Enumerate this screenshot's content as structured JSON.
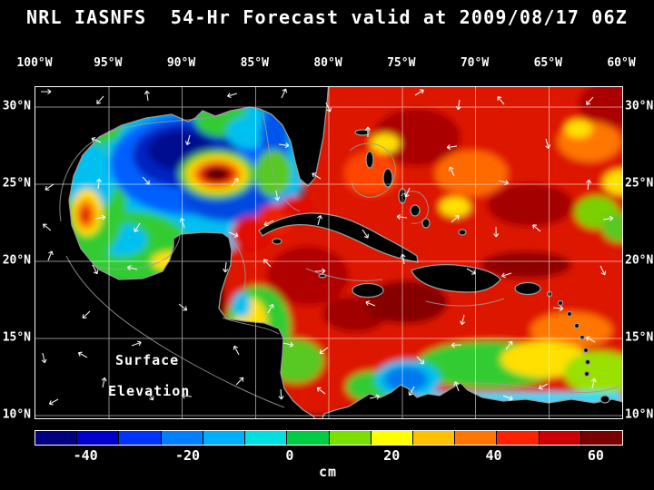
{
  "title": "NRL IASNFS  54-Hr Forecast valid at 2009/08/17 06Z",
  "map": {
    "lon_labels": [
      "100°W",
      "95°W",
      "90°W",
      "85°W",
      "80°W",
      "75°W",
      "70°W",
      "65°W",
      "60°W"
    ],
    "lat_labels": [
      "30°N",
      "25°N",
      "20°N",
      "15°N",
      "10°N"
    ],
    "annotation_line1": "Surface",
    "annotation_line2": "Elevation"
  },
  "colorbar": {
    "unit": "cm",
    "tick_labels": [
      "-40",
      "-20",
      "0",
      "20",
      "40",
      "60"
    ],
    "tick_values": [
      -40,
      -20,
      0,
      20,
      40,
      60
    ],
    "range_min": -50,
    "range_max": 65,
    "colors": [
      "#000080",
      "#0000cc",
      "#0033ff",
      "#0080ff",
      "#00b0ff",
      "#00e0e0",
      "#00cc44",
      "#7ae000",
      "#ffff00",
      "#ffc000",
      "#ff7700",
      "#ff2200",
      "#cc0000",
      "#7a0000"
    ]
  },
  "colors": {
    "background": "#000000",
    "frame": "#ffffff",
    "text": "#ffffff",
    "land": "#000000",
    "coastline": "#9a9a9a",
    "grid_lines": "#ffffff",
    "vector_arrows": "#ffffff"
  },
  "chart_data": {
    "type": "heatmap",
    "title": "NRL IASNFS 54-Hr Forecast valid at 2009/08/17 06Z",
    "variable": "Surface Elevation",
    "units": "cm",
    "region": "Gulf of Mexico, Caribbean Sea and western North Atlantic (Intra-Americas Sea)",
    "x_axis": {
      "label": "Longitude",
      "tick_labels": [
        "100°W",
        "95°W",
        "90°W",
        "85°W",
        "80°W",
        "75°W",
        "70°W",
        "65°W",
        "60°W"
      ]
    },
    "y_axis": {
      "label": "Latitude",
      "tick_labels": [
        "30°N",
        "25°N",
        "20°N",
        "15°N",
        "10°N"
      ]
    },
    "colorbar": {
      "units": "cm",
      "tick_values": [
        -40,
        -20,
        0,
        20,
        40,
        60
      ],
      "estimated_range": [
        -50,
        65
      ]
    },
    "grid": "5-degree latitude/longitude graticule drawn as white lines; land masked black with gray coastlines; white current-vector arrows overlaid",
    "notable_features": [
      "Warm-core eddy with very dark red core (> +60 cm) near 88°W 26°N in the central Gulf of Mexico, ringed by red, orange, yellow and green",
      "Large low-elevation area (deep blue, about -30 to -45 cm) over the north-central Gulf of Mexico surrounding the warm eddy",
      "Small high eddy with red core (about +40 cm) in the far western Gulf near 96.5°W 23°N inside a green/cyan field",
      "Cyan/green (about -10 to +5 cm) over the western Gulf and Bay of Campeche; blue band (about -20 cm) along the West Florida shelf",
      "Red tongue of the Loop Current through the Yucatan Channel and Straits of Florida",
      "High elevation (red/orange, about +30 to +55 cm) across most of the Caribbean Sea and western Atlantic, darkest south of Hispaniola",
      "Green/yellow coastal band along Honduras-Nicaragua and across the southern Caribbean near 11-13°N",
      "Blue low (about -15 cm) near 75°W 12°N off Colombia with a cyan ribbon along the Venezuelan coast"
    ]
  }
}
